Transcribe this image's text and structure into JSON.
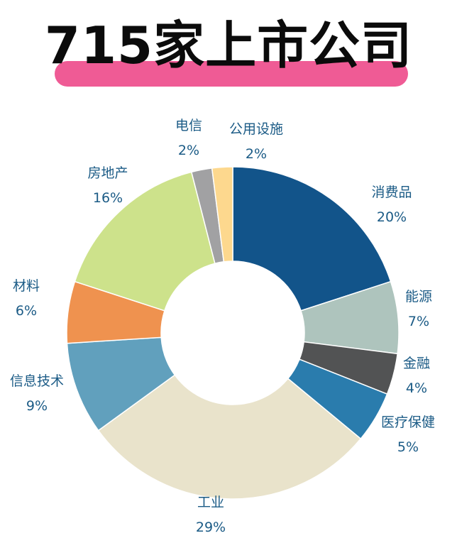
{
  "title": "715家上市公司",
  "colors": {
    "title_bar": "#ef5b95",
    "label_text": "#1b5b86"
  },
  "chart_data": {
    "type": "pie",
    "donut": true,
    "slices": [
      {
        "name": "消费品",
        "value": 20,
        "label": "20%",
        "color": "#12548a"
      },
      {
        "name": "能源",
        "value": 7,
        "label": "7%",
        "color": "#aec4bd"
      },
      {
        "name": "金融",
        "value": 4,
        "label": "4%",
        "color": "#525354"
      },
      {
        "name": "医疗保健",
        "value": 5,
        "label": "5%",
        "color": "#2a7cad"
      },
      {
        "name": "工业",
        "value": 29,
        "label": "29%",
        "color": "#e9e3cb"
      },
      {
        "name": "信息技术",
        "value": 9,
        "label": "9%",
        "color": "#61a0bd"
      },
      {
        "name": "材料",
        "value": 6,
        "label": "6%",
        "color": "#ef924f"
      },
      {
        "name": "房地产",
        "value": 16,
        "label": "16%",
        "color": "#cde28b"
      },
      {
        "name": "电信",
        "value": 2,
        "label": "2%",
        "color": "#a1a1a3"
      },
      {
        "name": "公用设施",
        "value": 2,
        "label": "2%",
        "color": "#fdd88e"
      }
    ]
  }
}
